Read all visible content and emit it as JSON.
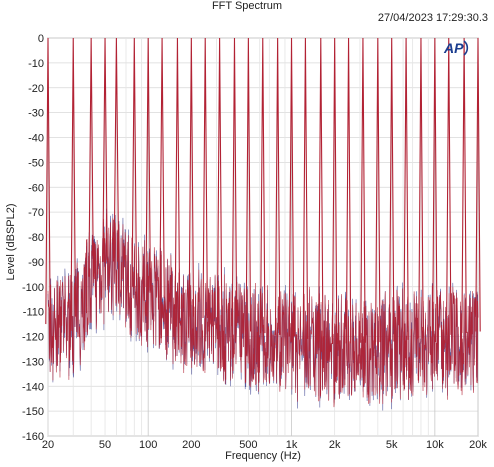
{
  "chart_data": {
    "type": "line",
    "title": "FFT Spectrum",
    "timestamp": "27/04/2023 17:29:30.3",
    "xlabel": "Frequency (Hz)",
    "ylabel": "Level (dBSPL2)",
    "xscale": "log",
    "xlim": [
      20,
      20000
    ],
    "ylim": [
      -160,
      0
    ],
    "x_ticks": [
      {
        "value": 20,
        "label": "20"
      },
      {
        "value": 50,
        "label": "50"
      },
      {
        "value": 100,
        "label": "100"
      },
      {
        "value": 200,
        "label": "200"
      },
      {
        "value": 500,
        "label": "500"
      },
      {
        "value": 1000,
        "label": "1k"
      },
      {
        "value": 2000,
        "label": "2k"
      },
      {
        "value": 5000,
        "label": "5k"
      },
      {
        "value": 10000,
        "label": "10k"
      },
      {
        "value": 20000,
        "label": "20k"
      }
    ],
    "y_ticks": [
      0,
      -10,
      -20,
      -30,
      -40,
      -50,
      -60,
      -70,
      -80,
      -90,
      -100,
      -110,
      -120,
      -130,
      -140,
      -150,
      -160
    ],
    "grid": true,
    "series": [
      {
        "color": "#b22234",
        "secondary_color": "#3a3f8f",
        "peak_frequencies": [
          20,
          30,
          40,
          50,
          60,
          80,
          100,
          125,
          160,
          200,
          250,
          315,
          400,
          500,
          630,
          800,
          1000,
          1250,
          1600,
          2000,
          2500,
          3150,
          4000,
          5000,
          6300,
          8000,
          10000,
          12500,
          16000,
          20000
        ],
        "peak_level": 0,
        "noise_floor": [
          [
            20,
            -115
          ],
          [
            30,
            -112
          ],
          [
            40,
            -96
          ],
          [
            50,
            -90
          ],
          [
            63,
            -88
          ],
          [
            80,
            -100
          ],
          [
            100,
            -100
          ],
          [
            150,
            -108
          ],
          [
            200,
            -112
          ],
          [
            300,
            -113
          ],
          [
            500,
            -118
          ],
          [
            1000,
            -120
          ],
          [
            2000,
            -123
          ],
          [
            5000,
            -122
          ],
          [
            10000,
            -120
          ],
          [
            20000,
            -118
          ]
        ]
      }
    ],
    "logo": "AP"
  }
}
